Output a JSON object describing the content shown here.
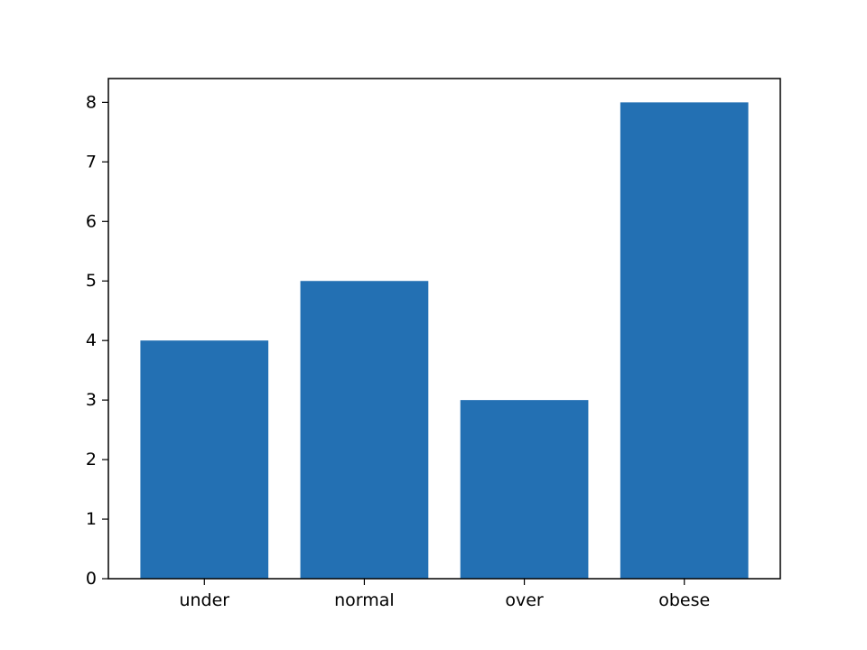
{
  "chart_data": {
    "type": "bar",
    "categories": [
      "under",
      "normal",
      "over",
      "obese"
    ],
    "values": [
      4,
      5,
      3,
      8
    ],
    "yticks": [
      0,
      1,
      2,
      3,
      4,
      5,
      6,
      7,
      8
    ],
    "ylim": [
      0,
      8.4
    ],
    "grid": false,
    "legend": "none",
    "colors": {
      "bar": "#2370b3",
      "axis": "#000000",
      "background": "#ffffff"
    }
  }
}
